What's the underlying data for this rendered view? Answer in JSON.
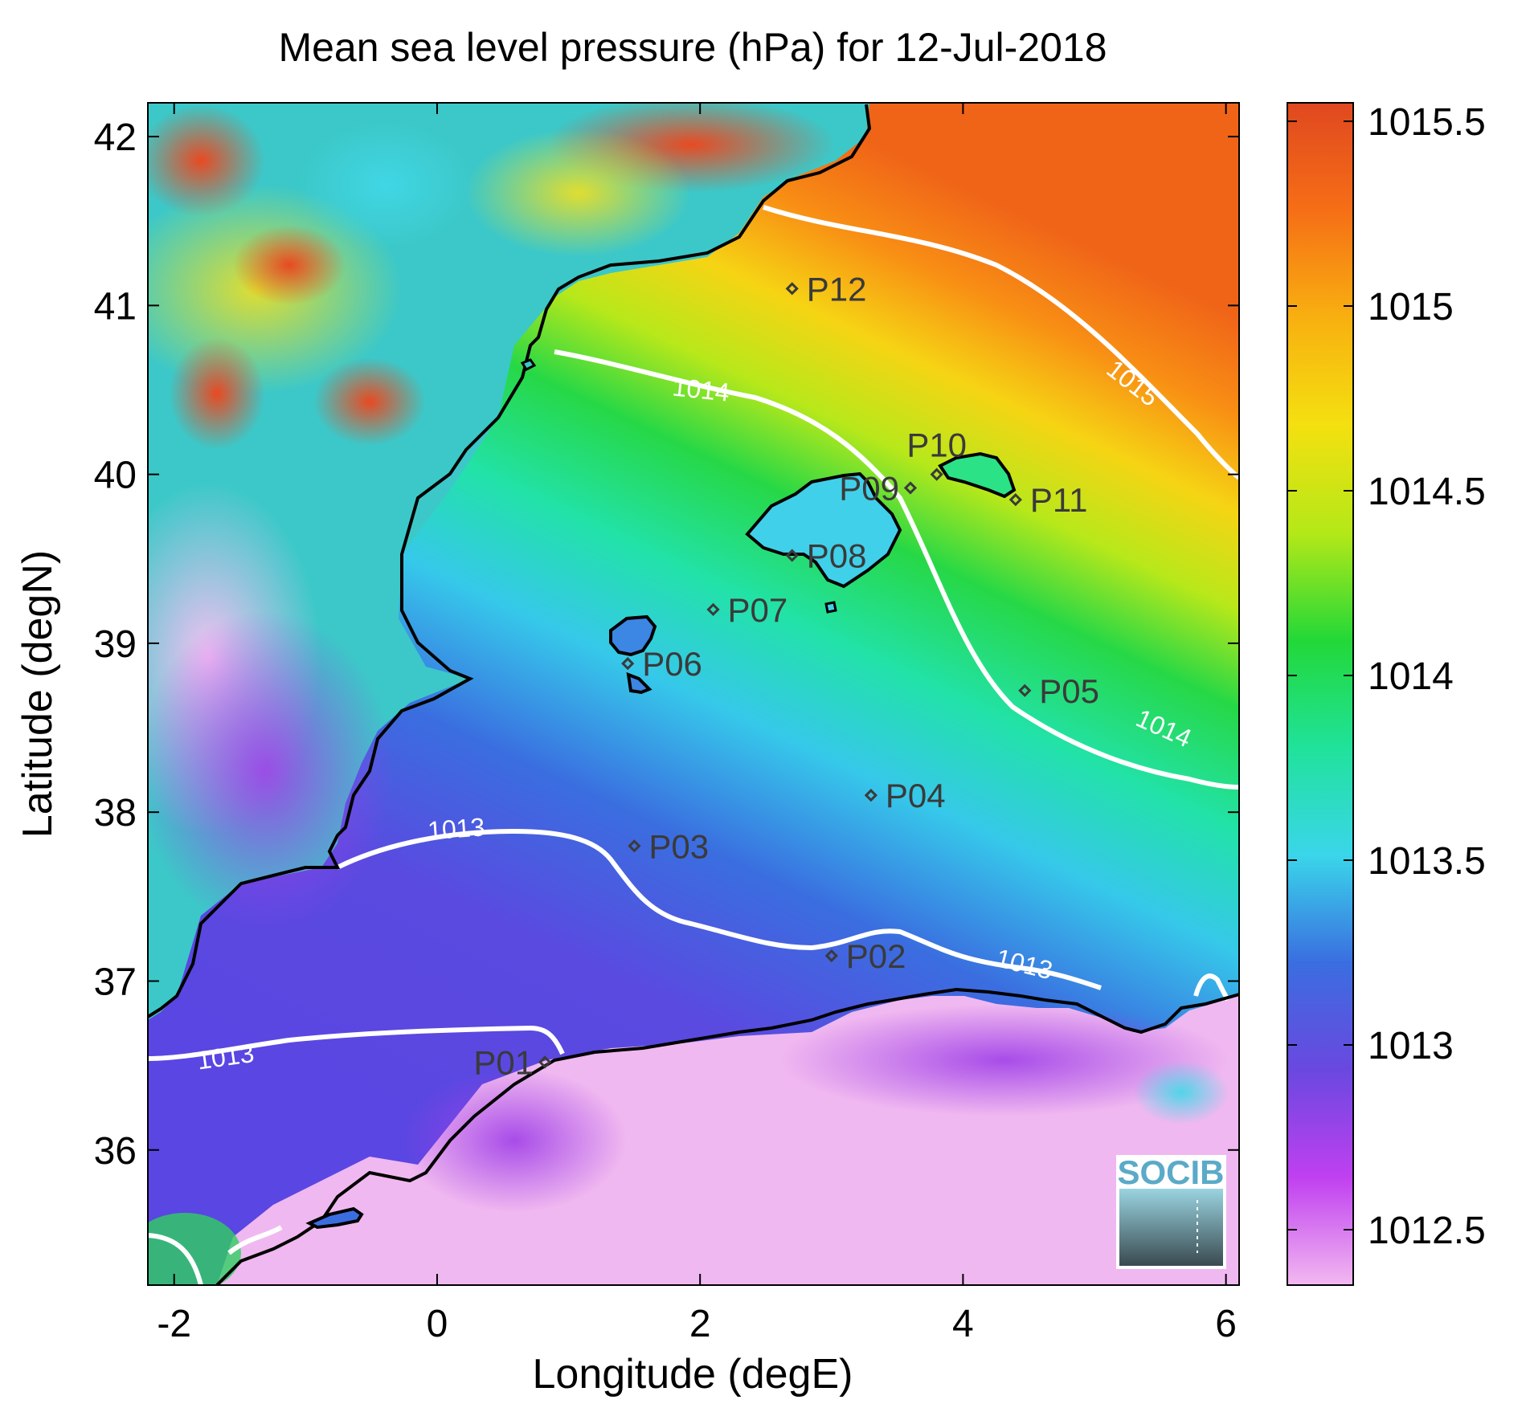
{
  "chart_data": {
    "type": "heatmap",
    "title": "Mean sea level pressure (hPa) for 12-Jul-2018",
    "xlabel": "Longitude (degE)",
    "ylabel": "Latitude (degN)",
    "xlim": [
      -2.2,
      6.1
    ],
    "ylim": [
      35.2,
      42.2
    ],
    "x_ticks": [
      -2,
      0,
      2,
      4,
      6
    ],
    "y_ticks": [
      36,
      37,
      38,
      39,
      40,
      41,
      42
    ],
    "colorbar": {
      "range": [
        1012.35,
        1015.55
      ],
      "ticks": [
        1012.5,
        1013,
        1013.5,
        1014,
        1014.5,
        1015,
        1015.5
      ],
      "colors": [
        "#f2b8f0",
        "#c040f0",
        "#6a48e0",
        "#3a6ee0",
        "#3ad6ea",
        "#20e29a",
        "#22d838",
        "#b4e818",
        "#f4e010",
        "#f8b010",
        "#f66e16",
        "#e04820"
      ]
    },
    "contour_labels": [
      {
        "text": "1013",
        "lon": 0.15,
        "lat": 37.85,
        "rot": -4
      },
      {
        "text": "1013",
        "lon": 4.45,
        "lat": 37.05,
        "rot": 14
      },
      {
        "text": "1013",
        "lon": -1.6,
        "lat": 36.5,
        "rot": -8
      },
      {
        "text": "1014",
        "lon": 2.0,
        "lat": 40.45,
        "rot": 6
      },
      {
        "text": "1014",
        "lon": 5.5,
        "lat": 38.45,
        "rot": 24
      },
      {
        "text": "1015",
        "lon": 5.25,
        "lat": 40.5,
        "rot": 38
      }
    ],
    "stations": [
      {
        "name": "P01",
        "lon": 0.82,
        "lat": 36.52,
        "label_side": "left"
      },
      {
        "name": "P02",
        "lon": 3.0,
        "lat": 37.15,
        "label_side": "right"
      },
      {
        "name": "P03",
        "lon": 1.5,
        "lat": 37.8,
        "label_side": "right"
      },
      {
        "name": "P04",
        "lon": 3.3,
        "lat": 38.1,
        "label_side": "right"
      },
      {
        "name": "P05",
        "lon": 4.47,
        "lat": 38.72,
        "label_side": "right"
      },
      {
        "name": "P06",
        "lon": 1.45,
        "lat": 38.88,
        "label_side": "right"
      },
      {
        "name": "P07",
        "lon": 2.1,
        "lat": 39.2,
        "label_side": "right"
      },
      {
        "name": "P08",
        "lon": 2.7,
        "lat": 39.52,
        "label_side": "right"
      },
      {
        "name": "P09",
        "lon": 3.6,
        "lat": 39.92,
        "label_side": "left"
      },
      {
        "name": "P10",
        "lon": 3.8,
        "lat": 40.0,
        "label_side": "above"
      },
      {
        "name": "P11",
        "lon": 4.4,
        "lat": 39.85,
        "label_side": "right"
      },
      {
        "name": "P12",
        "lon": 2.7,
        "lat": 41.1,
        "label_side": "right"
      }
    ]
  },
  "logo": {
    "text": "SOCIB"
  }
}
